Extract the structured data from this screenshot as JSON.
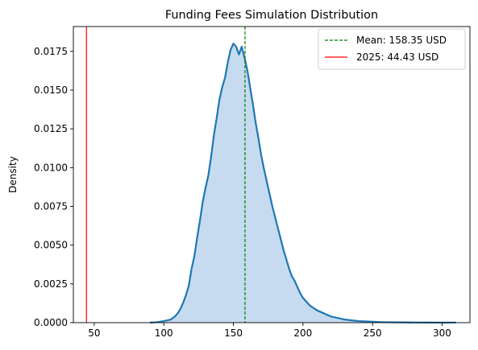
{
  "chart_data": {
    "type": "area",
    "title": "Funding Fees Simulation Distribution",
    "xlabel": "",
    "ylabel": "Density",
    "xlim": [
      35,
      320
    ],
    "ylim": [
      0,
      0.0191
    ],
    "x_ticks": [
      50,
      100,
      150,
      200,
      250,
      300
    ],
    "y_ticks": [
      0.0,
      0.0025,
      0.005,
      0.0075,
      0.01,
      0.0125,
      0.015,
      0.0175
    ],
    "y_tick_labels": [
      "0.0000",
      "0.0025",
      "0.0050",
      "0.0075",
      "0.0100",
      "0.0125",
      "0.0150",
      "0.0175"
    ],
    "grid": false,
    "legend_position": "top-right",
    "series": [
      {
        "color": "#1f77b4",
        "fill_color": "#c6dbef",
        "x": [
          90,
          95,
          100,
          105,
          108,
          110,
          112,
          114,
          116,
          118,
          120,
          122,
          124,
          126,
          128,
          130,
          132,
          134,
          136,
          138,
          140,
          142,
          144,
          146,
          148,
          150,
          152,
          154,
          156,
          158,
          160,
          162,
          164,
          166,
          168,
          170,
          172,
          174,
          176,
          178,
          180,
          182,
          184,
          186,
          188,
          190,
          192,
          194,
          196,
          198,
          200,
          205,
          210,
          215,
          220,
          225,
          230,
          235,
          240,
          245,
          250,
          255,
          260,
          270,
          280,
          290,
          300,
          305,
          310
        ],
        "y": [
          0.0,
          3e-05,
          0.0001,
          0.0002,
          0.0004,
          0.0006,
          0.0009,
          0.0013,
          0.0018,
          0.0024,
          0.0035,
          0.0043,
          0.0055,
          0.0066,
          0.0078,
          0.0087,
          0.0095,
          0.0107,
          0.0121,
          0.0132,
          0.0144,
          0.0152,
          0.0158,
          0.0168,
          0.0176,
          0.018,
          0.0178,
          0.0173,
          0.0178,
          0.0171,
          0.0163,
          0.0152,
          0.0141,
          0.0129,
          0.0119,
          0.0108,
          0.0099,
          0.0091,
          0.0083,
          0.0075,
          0.0068,
          0.0061,
          0.0054,
          0.0047,
          0.0041,
          0.0035,
          0.003,
          0.0027,
          0.0023,
          0.0019,
          0.0016,
          0.0011,
          0.0008,
          0.0006,
          0.0004,
          0.0003,
          0.0002,
          0.00015,
          0.0001,
          8e-05,
          6e-05,
          4e-05,
          3e-05,
          2e-05,
          1e-05,
          5e-06,
          3e-06,
          2e-06,
          1e-05
        ]
      }
    ],
    "vlines": [
      {
        "x": 158.35,
        "color": "#008000",
        "style": "dashed",
        "label": "Mean: 158.35 USD"
      },
      {
        "x": 44.43,
        "color": "#ff0000",
        "style": "solid",
        "label": "2025: 44.43 USD"
      }
    ]
  }
}
